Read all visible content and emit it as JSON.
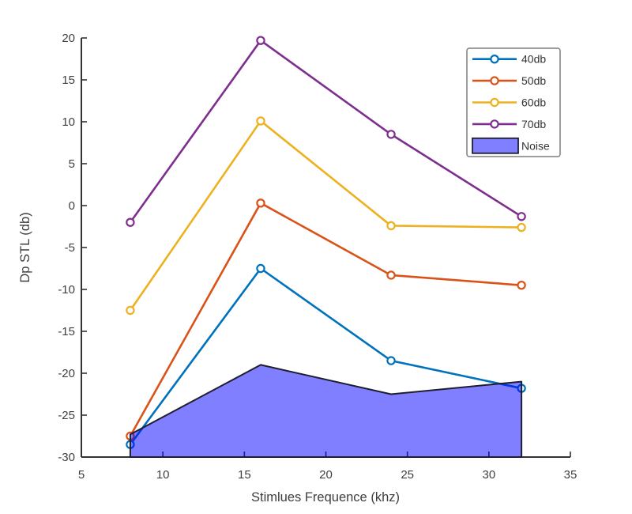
{
  "figure": {
    "background": "#ffffff",
    "axis_color": "#333333",
    "tick_label_color": "#404040"
  },
  "chart_data": {
    "type": "line",
    "title": "",
    "xlabel": "Stimlues Frequence (khz)",
    "ylabel": "Dp STL (db)",
    "xlim": [
      5,
      35
    ],
    "ylim": [
      -30,
      20
    ],
    "x_ticks": [
      5,
      10,
      15,
      20,
      25,
      30,
      35
    ],
    "y_ticks": [
      20,
      15,
      10,
      5,
      0,
      -5,
      -10,
      -15,
      -20,
      -25,
      -30
    ],
    "grid": false,
    "legend_position": "top-right",
    "x": [
      8,
      16,
      24,
      32
    ],
    "series": [
      {
        "name": "40db",
        "color": "#0072BD",
        "marker": "circle",
        "values": [
          -28.5,
          -7.5,
          -18.5,
          -21.8
        ]
      },
      {
        "name": "50db",
        "color": "#D95319",
        "marker": "circle",
        "values": [
          -27.5,
          0.3,
          -8.3,
          -9.5
        ]
      },
      {
        "name": "60db",
        "color": "#EDB120",
        "marker": "circle",
        "values": [
          -12.5,
          10.1,
          -2.4,
          -2.6
        ]
      },
      {
        "name": "70db",
        "color": "#7E2F8E",
        "marker": "circle",
        "values": [
          -2.0,
          19.7,
          8.5,
          -1.3
        ]
      }
    ],
    "area": {
      "name": "Noise",
      "fill": "rgba(0,0,255,0.5)",
      "edge": "#1e1e30",
      "values": [
        -27.3,
        -19.0,
        -22.5,
        -21.0
      ],
      "baseline": -30
    },
    "legend_entries": [
      "40db",
      "50db",
      "60db",
      "70db",
      "Noise"
    ]
  }
}
